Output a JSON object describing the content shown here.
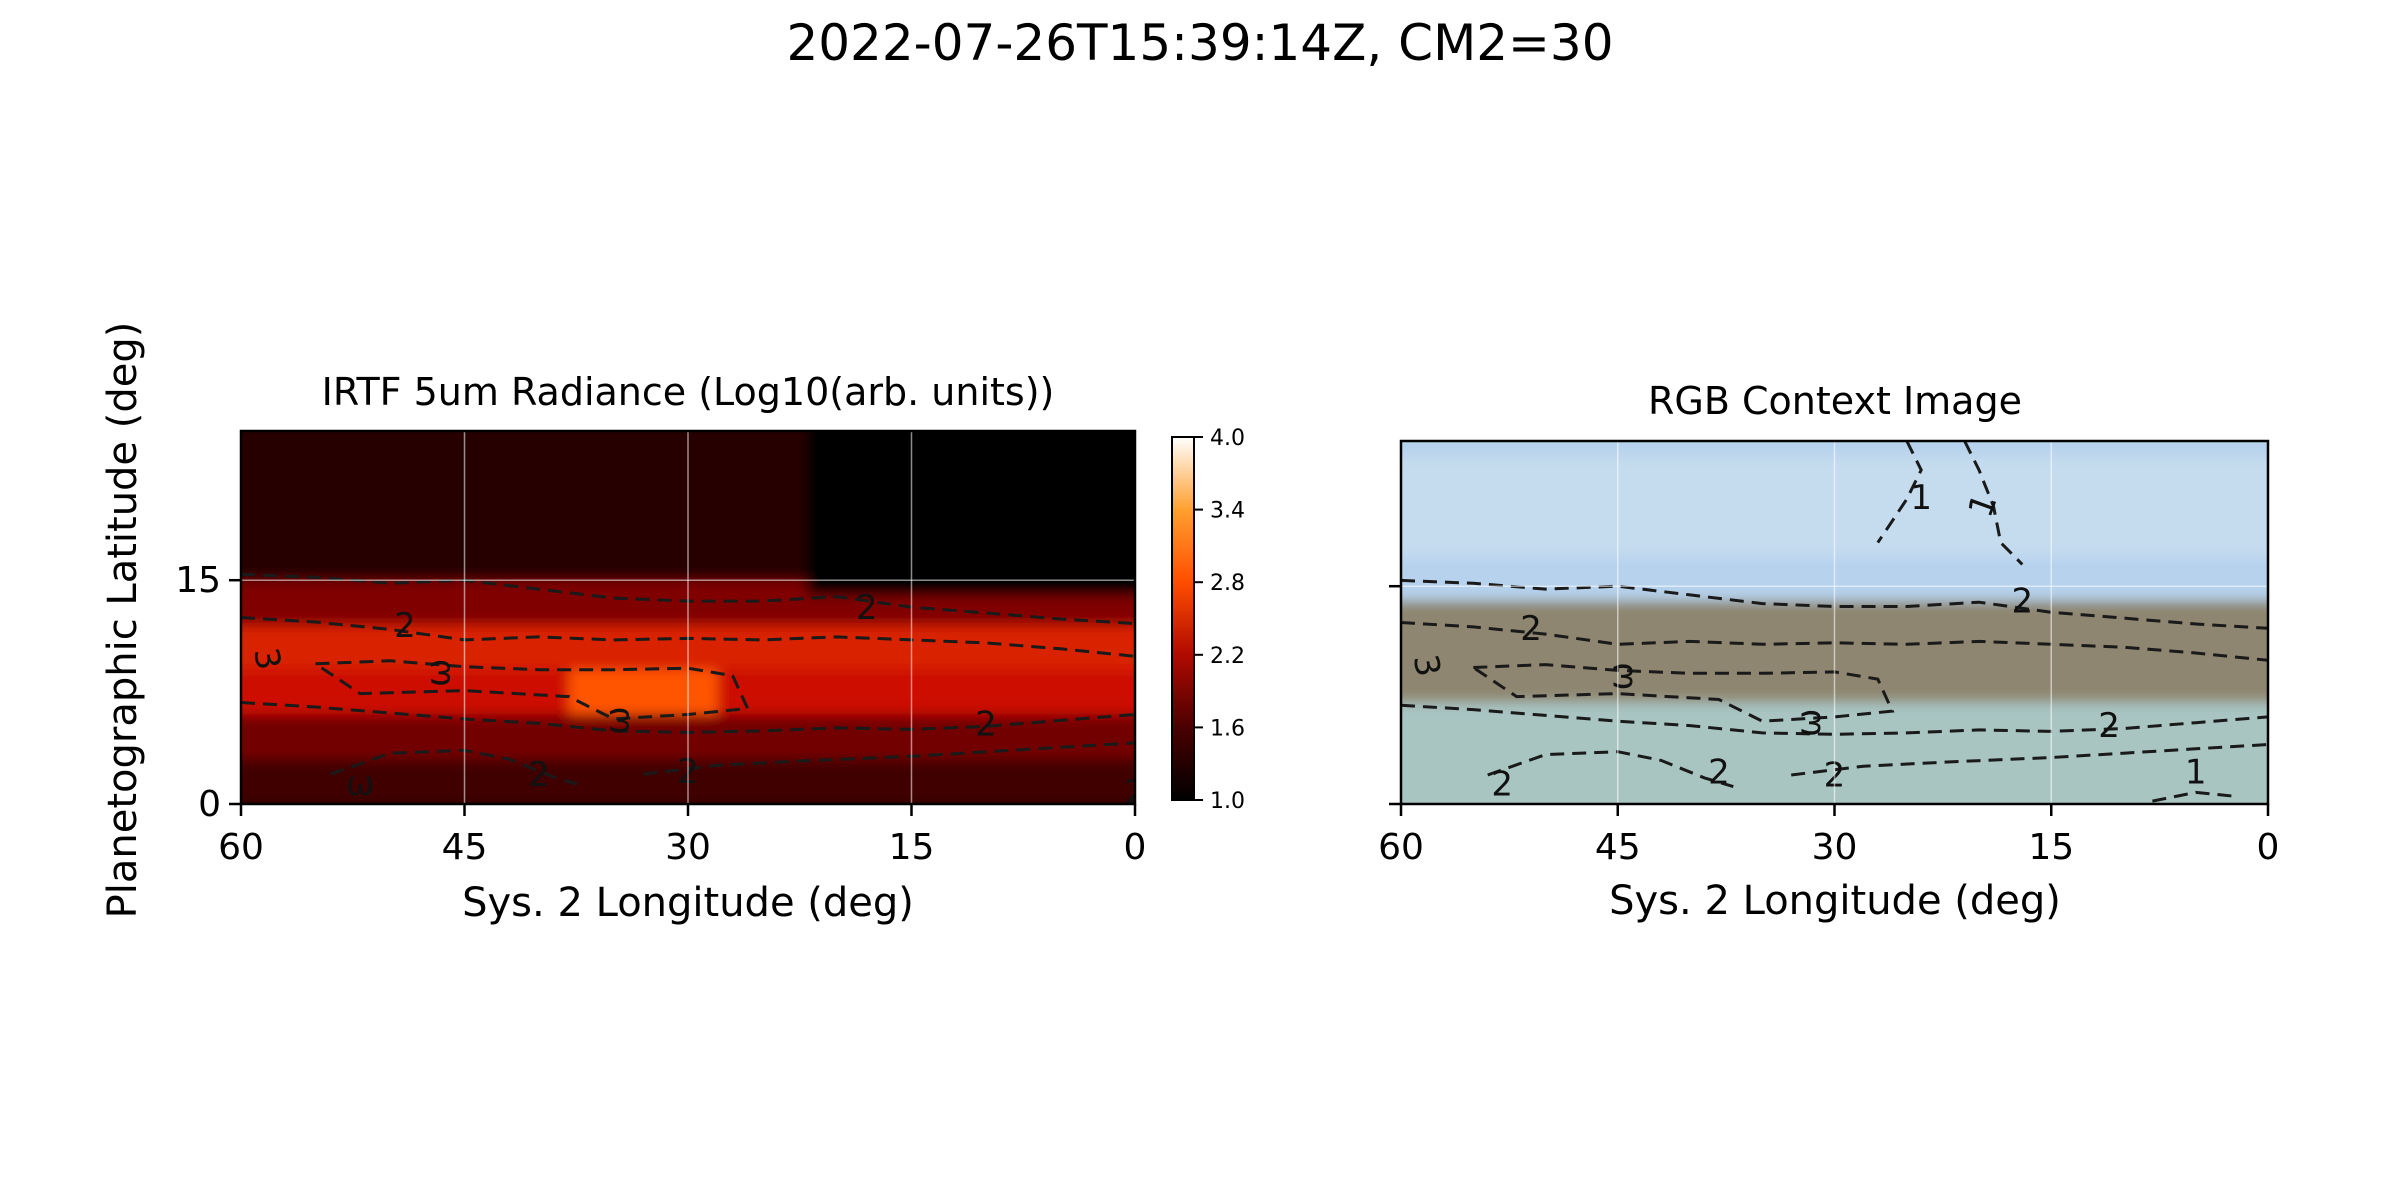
{
  "figure": {
    "suptitle": "2022-07-26T15:39:14Z, CM2=30",
    "shared_ylabel": "Planetographic Latitude (deg)"
  },
  "chart_data": [
    {
      "type": "heatmap",
      "title": "IRTF 5um Radiance (Log10(arb. units))",
      "xlabel": "Sys. 2 Longitude (deg)",
      "ylabel": "Planetographic Latitude (deg)",
      "xlim": [
        60,
        0
      ],
      "ylim": [
        0,
        25
      ],
      "xticks": [
        60,
        45,
        30,
        15,
        0
      ],
      "yticks": [
        0,
        15
      ],
      "grid": true,
      "colormap": "gist_heat",
      "colorbar": {
        "min": 1.0,
        "max": 4.0,
        "ticks": [
          "1.0",
          "1.6",
          "2.2",
          "2.8",
          "3.4",
          "4.0"
        ]
      },
      "bands": [
        {
          "lat_range": [
            0,
            3
          ],
          "value": 1.5
        },
        {
          "lat_range": [
            3,
            6
          ],
          "value": 1.9
        },
        {
          "lat_range": [
            6,
            9
          ],
          "value": 2.6
        },
        {
          "lat_range": [
            9,
            12
          ],
          "value": 2.7
        },
        {
          "lat_range": [
            12,
            15
          ],
          "value": 2.0
        },
        {
          "lat_range": [
            15,
            25
          ],
          "value": 1.3
        }
      ],
      "hotspot": {
        "lon_range": [
          38,
          28
        ],
        "lat_range": [
          6,
          9
        ],
        "value": 3.0
      },
      "contour_labels": [
        "3",
        "ω",
        "2",
        "2",
        "ω",
        "ω",
        "2",
        "2",
        "2",
        "2"
      ]
    },
    {
      "type": "image",
      "title": "RGB Context Image",
      "xlabel": "Sys. 2 Longitude (deg)",
      "xlim": [
        60,
        0
      ],
      "ylim": [
        0,
        25
      ],
      "xticks": [
        60,
        45,
        30,
        15,
        0
      ],
      "yticks": [
        0,
        15
      ],
      "grid": true,
      "colors": {
        "sky": "#b6d2ec",
        "belt": "#8e8670",
        "zone": "#a9c5c2",
        "sky_light": "#c5dcef"
      },
      "contour_labels": [
        "1",
        "1",
        "3",
        "2",
        "2",
        "ω",
        "ω",
        "2",
        "2",
        "2",
        "2",
        "1"
      ]
    }
  ]
}
